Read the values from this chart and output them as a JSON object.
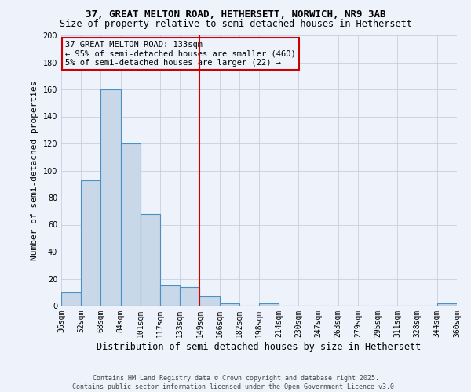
{
  "title_line1": "37, GREAT MELTON ROAD, HETHERSETT, NORWICH, NR9 3AB",
  "title_line2": "Size of property relative to semi-detached houses in Hethersett",
  "xlabel": "Distribution of semi-detached houses by size in Hethersett",
  "ylabel": "Number of semi-detached properties",
  "bar_values": [
    10,
    93,
    160,
    120,
    68,
    15,
    14,
    7,
    2,
    0,
    2,
    0,
    0,
    0,
    0,
    0,
    0,
    0,
    0,
    2
  ],
  "categories": [
    "36sqm",
    "52sqm",
    "68sqm",
    "84sqm",
    "101sqm",
    "117sqm",
    "133sqm",
    "149sqm",
    "166sqm",
    "182sqm",
    "198sqm",
    "214sqm",
    "230sqm",
    "247sqm",
    "263sqm",
    "279sqm",
    "295sqm",
    "311sqm",
    "328sqm",
    "344sqm",
    "360sqm"
  ],
  "bar_color": "#c8d8e8",
  "bar_edge_color": "#4a90c4",
  "vline_color": "#cc0000",
  "vline_bin_index": 6,
  "legend_text1": "37 GREAT MELTON ROAD: 133sqm",
  "legend_text2": "← 95% of semi-detached houses are smaller (460)",
  "legend_text3": "5% of semi-detached houses are larger (22) →",
  "legend_box_color": "#cc0000",
  "footer_line1": "Contains HM Land Registry data © Crown copyright and database right 2025.",
  "footer_line2": "Contains public sector information licensed under the Open Government Licence v3.0.",
  "ylim": [
    0,
    200
  ],
  "yticks": [
    0,
    20,
    40,
    60,
    80,
    100,
    120,
    140,
    160,
    180,
    200
  ],
  "background_color": "#eef2fb",
  "grid_color": "#c0c8da",
  "title1_fontsize": 9,
  "title2_fontsize": 8.5,
  "ylabel_fontsize": 8,
  "xlabel_fontsize": 8.5,
  "tick_fontsize": 7,
  "footer_fontsize": 6,
  "legend_fontsize": 7.5
}
